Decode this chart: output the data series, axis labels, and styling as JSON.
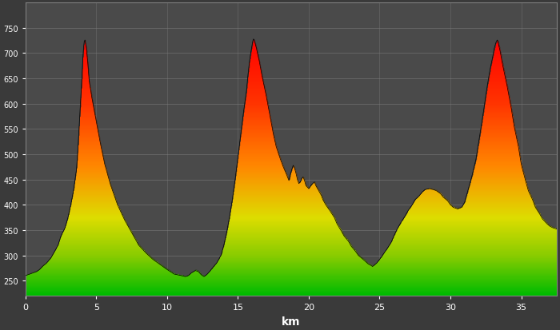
{
  "title": "",
  "xlabel": "km",
  "ylabel": "",
  "bg_color": "#4a4a4a",
  "fig_bg_color": "#3a3a3a",
  "plot_bg_color": "#4a4a4a",
  "ylim": [
    200,
    850
  ],
  "xlim": [
    0,
    37.5
  ],
  "yticks": [
    750,
    700,
    650,
    600,
    550,
    500,
    450,
    400,
    350,
    300,
    250
  ],
  "ytick_labels": [
    "750",
    "700",
    "650",
    "600",
    "550",
    "500",
    "450",
    "400",
    "350",
    "300",
    "250"
  ],
  "xticks": [
    0,
    5,
    10,
    15,
    20,
    25,
    30,
    35
  ],
  "gradient_colors": [
    "#00cc00",
    "#cccc00",
    "#ff8800",
    "#ff0000"
  ],
  "gradient_thresholds": [
    220,
    400,
    600,
    780
  ],
  "route": [
    [
      0.0,
      260
    ],
    [
      0.2,
      262
    ],
    [
      0.5,
      265
    ],
    [
      0.8,
      268
    ],
    [
      1.0,
      272
    ],
    [
      1.2,
      278
    ],
    [
      1.5,
      285
    ],
    [
      1.8,
      295
    ],
    [
      2.0,
      305
    ],
    [
      2.3,
      320
    ],
    [
      2.5,
      338
    ],
    [
      2.8,
      355
    ],
    [
      3.0,
      375
    ],
    [
      3.2,
      400
    ],
    [
      3.4,
      430
    ],
    [
      3.6,
      470
    ],
    [
      3.7,
      510
    ],
    [
      3.8,
      560
    ],
    [
      3.9,
      610
    ],
    [
      4.0,
      660
    ],
    [
      4.05,
      690
    ],
    [
      4.1,
      710
    ],
    [
      4.15,
      723
    ],
    [
      4.2,
      726
    ],
    [
      4.3,
      710
    ],
    [
      4.4,
      680
    ],
    [
      4.5,
      645
    ],
    [
      4.7,
      610
    ],
    [
      5.0,
      565
    ],
    [
      5.3,
      520
    ],
    [
      5.6,
      480
    ],
    [
      6.0,
      440
    ],
    [
      6.5,
      400
    ],
    [
      7.0,
      370
    ],
    [
      7.5,
      345
    ],
    [
      8.0,
      320
    ],
    [
      8.5,
      305
    ],
    [
      9.0,
      292
    ],
    [
      9.5,
      282
    ],
    [
      10.0,
      272
    ],
    [
      10.5,
      263
    ],
    [
      11.0,
      260
    ],
    [
      11.3,
      258
    ],
    [
      11.5,
      260
    ],
    [
      11.7,
      265
    ],
    [
      12.0,
      270
    ],
    [
      12.2,
      268
    ],
    [
      12.4,
      262
    ],
    [
      12.6,
      258
    ],
    [
      12.8,
      262
    ],
    [
      13.0,
      268
    ],
    [
      13.2,
      275
    ],
    [
      13.5,
      285
    ],
    [
      13.8,
      300
    ],
    [
      14.0,
      320
    ],
    [
      14.2,
      345
    ],
    [
      14.4,
      375
    ],
    [
      14.6,
      410
    ],
    [
      14.8,
      450
    ],
    [
      15.0,
      495
    ],
    [
      15.2,
      540
    ],
    [
      15.4,
      585
    ],
    [
      15.6,
      625
    ],
    [
      15.7,
      655
    ],
    [
      15.8,
      680
    ],
    [
      15.9,
      700
    ],
    [
      16.0,
      716
    ],
    [
      16.05,
      724
    ],
    [
      16.1,
      728
    ],
    [
      16.15,
      726
    ],
    [
      16.3,
      710
    ],
    [
      16.5,
      685
    ],
    [
      16.7,
      655
    ],
    [
      17.0,
      615
    ],
    [
      17.3,
      570
    ],
    [
      17.5,
      540
    ],
    [
      17.7,
      515
    ],
    [
      18.0,
      490
    ],
    [
      18.2,
      475
    ],
    [
      18.4,
      462
    ],
    [
      18.5,
      455
    ],
    [
      18.6,
      448
    ],
    [
      18.7,
      460
    ],
    [
      18.8,
      470
    ],
    [
      18.9,
      478
    ],
    [
      19.0,
      472
    ],
    [
      19.1,
      462
    ],
    [
      19.2,
      450
    ],
    [
      19.3,
      442
    ],
    [
      19.4,
      445
    ],
    [
      19.5,
      452
    ],
    [
      19.6,
      455
    ],
    [
      19.7,
      448
    ],
    [
      19.8,
      438
    ],
    [
      20.0,
      432
    ],
    [
      20.2,
      440
    ],
    [
      20.4,
      445
    ],
    [
      20.5,
      438
    ],
    [
      20.7,
      428
    ],
    [
      20.9,
      418
    ],
    [
      21.0,
      410
    ],
    [
      21.2,
      400
    ],
    [
      21.5,
      388
    ],
    [
      21.8,
      375
    ],
    [
      22.0,
      362
    ],
    [
      22.3,
      348
    ],
    [
      22.5,
      338
    ],
    [
      22.8,
      328
    ],
    [
      23.0,
      318
    ],
    [
      23.3,
      308
    ],
    [
      23.5,
      300
    ],
    [
      23.8,
      293
    ],
    [
      24.0,
      288
    ],
    [
      24.2,
      283
    ],
    [
      24.4,
      280
    ],
    [
      24.5,
      278
    ],
    [
      24.6,
      280
    ],
    [
      24.8,
      285
    ],
    [
      25.0,
      292
    ],
    [
      25.2,
      300
    ],
    [
      25.5,
      312
    ],
    [
      25.8,
      325
    ],
    [
      26.0,
      338
    ],
    [
      26.2,
      350
    ],
    [
      26.5,
      365
    ],
    [
      26.8,
      378
    ],
    [
      27.0,
      388
    ],
    [
      27.3,
      400
    ],
    [
      27.5,
      410
    ],
    [
      27.8,
      418
    ],
    [
      28.0,
      425
    ],
    [
      28.2,
      430
    ],
    [
      28.5,
      432
    ],
    [
      28.8,
      430
    ],
    [
      29.0,
      428
    ],
    [
      29.3,
      422
    ],
    [
      29.5,
      415
    ],
    [
      29.8,
      408
    ],
    [
      30.0,
      400
    ],
    [
      30.2,
      395
    ],
    [
      30.5,
      392
    ],
    [
      30.8,
      395
    ],
    [
      31.0,
      405
    ],
    [
      31.2,
      425
    ],
    [
      31.5,
      455
    ],
    [
      31.8,
      490
    ],
    [
      32.0,
      525
    ],
    [
      32.2,
      560
    ],
    [
      32.4,
      598
    ],
    [
      32.6,
      635
    ],
    [
      32.8,
      668
    ],
    [
      33.0,
      695
    ],
    [
      33.1,
      710
    ],
    [
      33.2,
      720
    ],
    [
      33.3,
      726
    ],
    [
      33.35,
      723
    ],
    [
      33.5,
      705
    ],
    [
      33.7,
      675
    ],
    [
      34.0,
      635
    ],
    [
      34.3,
      590
    ],
    [
      34.5,
      555
    ],
    [
      34.8,
      515
    ],
    [
      35.0,
      480
    ],
    [
      35.3,
      448
    ],
    [
      35.5,
      428
    ],
    [
      35.8,
      410
    ],
    [
      36.0,
      395
    ],
    [
      36.3,
      382
    ],
    [
      36.5,
      372
    ],
    [
      36.8,
      363
    ],
    [
      37.0,
      358
    ],
    [
      37.2,
      355
    ],
    [
      37.5,
      352
    ]
  ]
}
